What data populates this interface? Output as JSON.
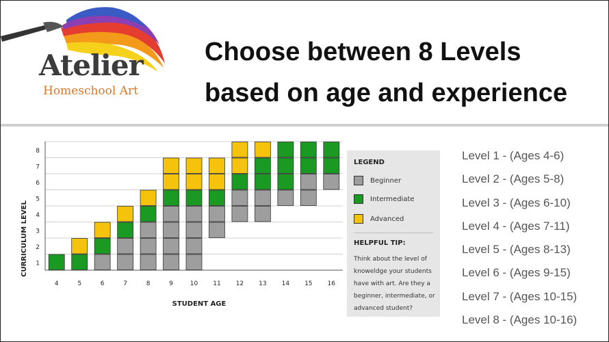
{
  "brand": {
    "name": "Atelier",
    "subtitle": "Homeschool Art",
    "colors": {
      "name": "#3b3b3b",
      "subtitle": "#d9782b"
    }
  },
  "headline": {
    "line1": "Choose between 8 Levels",
    "line2": "based on age and experience"
  },
  "chart_data": {
    "type": "bar",
    "subtype": "stacked-segments",
    "xlabel": "STUDENT AGE",
    "ylabel": "CURRICULUM LEVEL",
    "categories": [
      4,
      5,
      6,
      7,
      8,
      9,
      10,
      11,
      12,
      13,
      14,
      15,
      16
    ],
    "yticks": [
      1,
      2,
      3,
      4,
      5,
      6,
      7,
      8
    ],
    "ylim": [
      0,
      8
    ],
    "grid": true,
    "colors": {
      "beginner": "#9e9e9e",
      "intermediate": "#1a9a22",
      "advanced": "#f5c20c"
    },
    "series": [
      {
        "name": "Beginner",
        "ranges": [
          null,
          null,
          [
            1,
            1
          ],
          [
            1,
            2
          ],
          [
            1,
            3
          ],
          [
            1,
            4
          ],
          [
            1,
            4
          ],
          [
            3,
            4
          ],
          [
            4,
            5
          ],
          [
            4,
            5
          ],
          [
            5,
            5
          ],
          [
            5,
            6
          ],
          [
            6,
            6
          ]
        ]
      },
      {
        "name": "Intermediate",
        "ranges": [
          [
            1,
            1
          ],
          [
            1,
            1
          ],
          [
            2,
            2
          ],
          [
            3,
            3
          ],
          [
            4,
            4
          ],
          [
            5,
            5
          ],
          [
            5,
            5
          ],
          [
            5,
            5
          ],
          [
            6,
            6
          ],
          [
            6,
            7
          ],
          [
            6,
            8
          ],
          [
            7,
            8
          ],
          [
            7,
            8
          ]
        ]
      },
      {
        "name": "Advanced",
        "ranges": [
          null,
          [
            2,
            2
          ],
          [
            3,
            3
          ],
          [
            4,
            4
          ],
          [
            5,
            5
          ],
          [
            6,
            7
          ],
          [
            6,
            7
          ],
          [
            6,
            7
          ],
          [
            7,
            8
          ],
          [
            8,
            8
          ],
          null,
          null,
          null
        ]
      }
    ]
  },
  "legend": {
    "title": "LEGEND",
    "items": [
      {
        "label": "Beginner",
        "color": "#9e9e9e"
      },
      {
        "label": "Intermediate",
        "color": "#1a9a22"
      },
      {
        "label": "Advanced",
        "color": "#f5c20c"
      }
    ]
  },
  "tip": {
    "title": "HELPFUL TIP:",
    "text": "Think about the level of knoweldge your students have with art. Are they a beginner, intermediate, or advanced student?"
  },
  "levels": [
    "Level 1 - (Ages 4-6)",
    "Level 2 - (Ages 5-8)",
    "Level 3 - (Ages 6-10)",
    "Level 4 - (Ages 7-11)",
    "Level 5 - (Ages 8-13)",
    "Level 6 - (Ages 9-15)",
    "Level 7 - (Ages 10-15)",
    "Level 8 - (Ages 10-16)"
  ]
}
